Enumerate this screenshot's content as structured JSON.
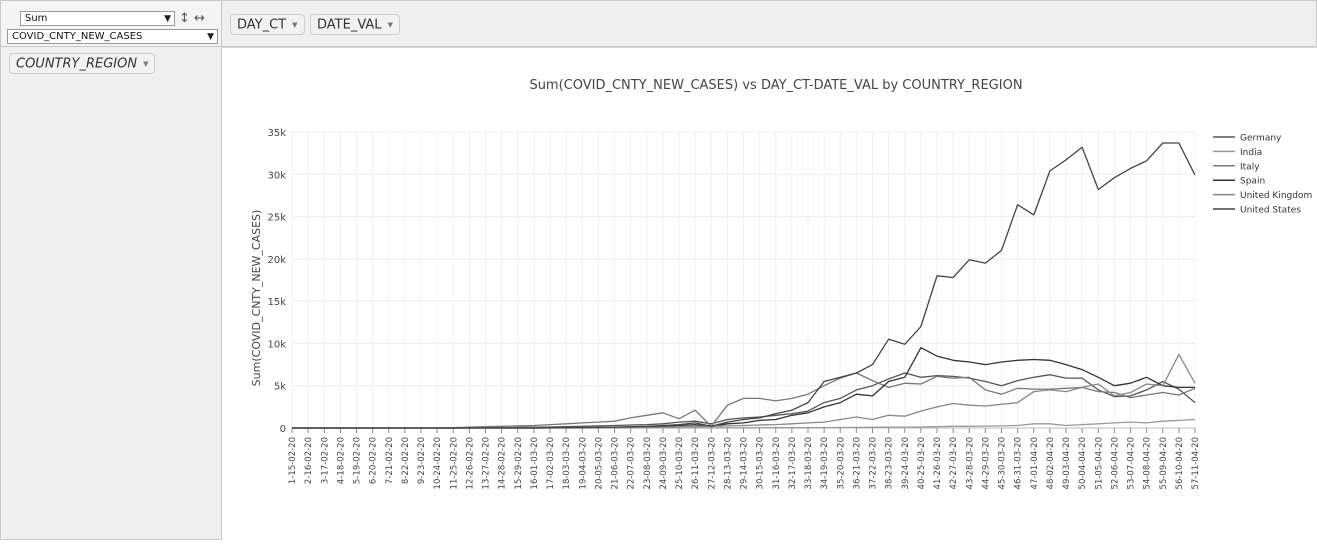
{
  "controls": {
    "aggregator": "Sum",
    "value_field": "COVID_CNTY_NEW_CASES",
    "sort_icon": "sort-arrows-icon",
    "swap_icon": "swap-horizontal-icon"
  },
  "columns": [
    {
      "label": "DAY_CT"
    },
    {
      "label": "DATE_VAL"
    }
  ],
  "rows": [
    {
      "label": "COUNTRY_REGION"
    }
  ],
  "chart_data": {
    "type": "line",
    "title": "Sum(COVID_CNTY_NEW_CASES) vs DAY_CT-DATE_VAL by COUNTRY_REGION",
    "xlabel": "",
    "ylabel": "Sum(COVID_CNTY_NEW_CASES)",
    "ylim": [
      0,
      35000
    ],
    "yticks": [
      0,
      5000,
      10000,
      15000,
      20000,
      25000,
      30000,
      35000
    ],
    "ytick_labels": [
      "0",
      "5k",
      "10k",
      "15k",
      "20k",
      "25k",
      "30k",
      "35k"
    ],
    "grid": true,
    "legend": "right",
    "categories": [
      "1-15-02-20",
      "2-16-02-20",
      "3-17-02-20",
      "4-18-02-20",
      "5-19-02-20",
      "6-20-02-20",
      "7-21-02-20",
      "8-22-02-20",
      "9-23-02-20",
      "10-24-02-20",
      "11-25-02-20",
      "12-26-02-20",
      "13-27-02-20",
      "14-28-02-20",
      "15-29-02-20",
      "16-01-03-20",
      "17-02-03-20",
      "18-03-03-20",
      "19-04-03-20",
      "20-05-03-20",
      "21-06-03-20",
      "22-07-03-20",
      "23-08-03-20",
      "24-09-03-20",
      "25-10-03-20",
      "26-11-03-20",
      "27-12-03-20",
      "28-13-03-20",
      "29-14-03-20",
      "30-15-03-20",
      "31-16-03-20",
      "32-17-03-20",
      "33-18-03-20",
      "34-19-03-20",
      "35-20-03-20",
      "36-21-03-20",
      "37-22-03-20",
      "38-23-03-20",
      "39-24-03-20",
      "40-25-03-20",
      "41-26-03-20",
      "42-27-03-20",
      "43-28-03-20",
      "44-29-03-20",
      "45-30-03-20",
      "46-31-03-20",
      "47-01-04-20",
      "48-02-04-20",
      "49-03-04-20",
      "50-04-04-20",
      "51-05-04-20",
      "52-06-04-20",
      "53-07-04-20",
      "54-08-04-20",
      "55-09-04-20",
      "56-10-04-20",
      "57-11-04-20"
    ],
    "series": [
      {
        "name": "Germany",
        "color": "#555555",
        "values": [
          0,
          0,
          0,
          0,
          0,
          0,
          0,
          0,
          0,
          0,
          5,
          15,
          30,
          50,
          80,
          100,
          120,
          150,
          200,
          250,
          300,
          350,
          400,
          500,
          700,
          800,
          500,
          1000,
          1200,
          1300,
          1500,
          1700,
          2000,
          3000,
          3500,
          4500,
          5000,
          5800,
          6500,
          6000,
          6200,
          6100,
          5900,
          5500,
          5000,
          5600,
          6000,
          6300,
          5900,
          5900,
          4500,
          3700,
          3800,
          4500,
          5500,
          4600,
          3000
        ]
      },
      {
        "name": "India",
        "color": "#999999",
        "values": [
          0,
          0,
          0,
          0,
          0,
          0,
          0,
          0,
          0,
          0,
          0,
          0,
          0,
          0,
          0,
          0,
          0,
          0,
          5,
          5,
          10,
          10,
          10,
          10,
          15,
          20,
          20,
          20,
          20,
          25,
          30,
          30,
          40,
          50,
          60,
          70,
          80,
          100,
          110,
          120,
          150,
          200,
          200,
          230,
          250,
          300,
          500,
          500,
          300,
          400,
          500,
          600,
          700,
          600,
          800,
          900,
          1000
        ]
      },
      {
        "name": "Italy",
        "color": "#777777",
        "values": [
          0,
          0,
          0,
          0,
          0,
          0,
          0,
          0,
          0,
          0,
          50,
          100,
          150,
          200,
          250,
          300,
          400,
          500,
          600,
          700,
          800,
          1200,
          1500,
          1800,
          1100,
          2100,
          200,
          2700,
          3500,
          3500,
          3200,
          3500,
          4000,
          5000,
          5900,
          6500,
          5600,
          4800,
          5300,
          5200,
          6100,
          5900,
          6000,
          4500,
          4000,
          4700,
          4600,
          4600,
          4700,
          4800,
          4300,
          4200,
          3600,
          3900,
          4200,
          3900,
          4700
        ]
      },
      {
        "name": "Spain",
        "color": "#333333",
        "values": [
          0,
          0,
          0,
          0,
          0,
          0,
          0,
          0,
          0,
          0,
          0,
          0,
          0,
          0,
          0,
          0,
          20,
          30,
          40,
          50,
          60,
          80,
          100,
          150,
          300,
          400,
          200,
          500,
          600,
          900,
          1000,
          1500,
          1800,
          2500,
          3000,
          4000,
          3800,
          5500,
          6000,
          9500,
          8500,
          8000,
          7800,
          7500,
          7800,
          8000,
          8100,
          8000,
          7500,
          6900,
          6000,
          5000,
          5300,
          6000,
          5000,
          4800,
          4800
        ]
      },
      {
        "name": "United Kingdom",
        "color": "#888888",
        "values": [
          0,
          0,
          0,
          0,
          0,
          0,
          0,
          0,
          0,
          0,
          0,
          0,
          0,
          0,
          0,
          0,
          10,
          10,
          15,
          20,
          30,
          40,
          50,
          80,
          150,
          200,
          200,
          250,
          300,
          350,
          400,
          500,
          600,
          700,
          1000,
          1300,
          1000,
          1500,
          1400,
          2000,
          2500,
          2900,
          2700,
          2600,
          2800,
          3000,
          4300,
          4500,
          4300,
          4800,
          5200,
          3800,
          4200,
          5200,
          5000,
          8700,
          5300
        ]
      },
      {
        "name": "United States",
        "color": "#444444",
        "values": [
          0,
          0,
          0,
          0,
          0,
          0,
          0,
          0,
          0,
          0,
          0,
          0,
          0,
          0,
          0,
          0,
          20,
          30,
          50,
          80,
          100,
          150,
          200,
          300,
          400,
          600,
          200,
          700,
          1000,
          1200,
          1700,
          2100,
          3000,
          5500,
          6000,
          6500,
          7500,
          10500,
          9900,
          12000,
          18000,
          17800,
          19900,
          19500,
          21000,
          26400,
          25200,
          30400,
          31700,
          33200,
          28200,
          29600,
          30700,
          31600,
          33700,
          33700,
          29900
        ]
      }
    ]
  }
}
